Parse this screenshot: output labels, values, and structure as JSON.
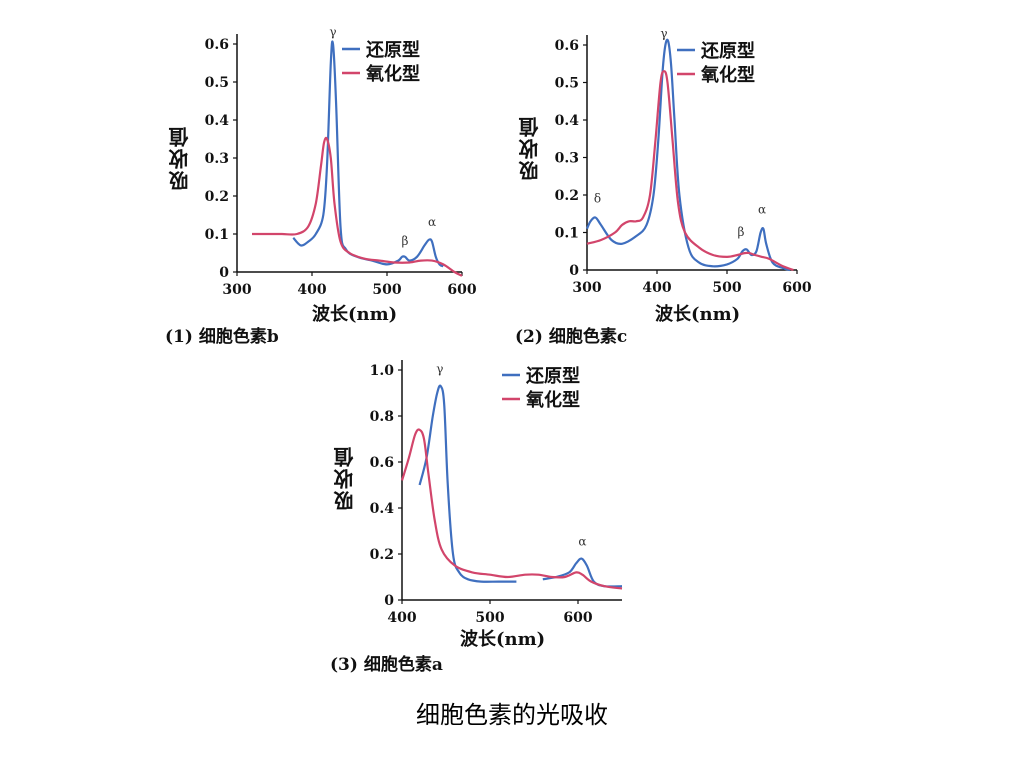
{
  "slide": {
    "title": "细胞色素的光吸收"
  },
  "colors": {
    "reduced": "#3f6fbf",
    "oxidized": "#d2456b",
    "axis": "#111111"
  },
  "chart_data": [
    {
      "type": "line",
      "caption": "(1) 细胞色素b",
      "xlabel": "波长(nm)",
      "ylabel": "吸收值",
      "xlim": [
        300,
        600
      ],
      "ylim": [
        0,
        0.6
      ],
      "xticks": [
        "300",
        "400",
        "500",
        "600"
      ],
      "yticks": [
        "0",
        "0.1",
        "0.2",
        "0.3",
        "0.4",
        "0.5",
        "0.6"
      ],
      "legend": [
        "还原型",
        "氧化型"
      ],
      "legend_position": "top-right",
      "annotations": [
        {
          "text": "γ",
          "x": 428,
          "y": 0.61
        },
        {
          "text": "β",
          "x": 524,
          "y": 0.06
        },
        {
          "text": "α",
          "x": 560,
          "y": 0.11
        }
      ],
      "series": [
        {
          "name": "还原型",
          "x": [
            375,
            385,
            395,
            405,
            415,
            420,
            425,
            428,
            432,
            438,
            445,
            460,
            480,
            500,
            515,
            520,
            524,
            530,
            540,
            550,
            556,
            560,
            565,
            570,
            575
          ],
          "y": [
            0.09,
            0.07,
            0.08,
            0.1,
            0.15,
            0.28,
            0.55,
            0.6,
            0.45,
            0.12,
            0.06,
            0.04,
            0.03,
            0.02,
            0.03,
            0.04,
            0.04,
            0.03,
            0.04,
            0.07,
            0.085,
            0.08,
            0.04,
            0.02,
            0.015
          ]
        },
        {
          "name": "氧化型",
          "x": [
            320,
            340,
            360,
            380,
            395,
            405,
            412,
            416,
            420,
            425,
            430,
            438,
            450,
            470,
            490,
            510,
            530,
            545,
            560,
            575,
            590,
            600
          ],
          "y": [
            0.1,
            0.1,
            0.1,
            0.1,
            0.12,
            0.18,
            0.28,
            0.34,
            0.35,
            0.3,
            0.18,
            0.08,
            0.05,
            0.035,
            0.03,
            0.025,
            0.025,
            0.03,
            0.03,
            0.02,
            0.0,
            -0.01
          ]
        }
      ]
    },
    {
      "type": "line",
      "caption": "(2) 细胞色素c",
      "xlabel": "波长(nm)",
      "ylabel": "吸收值",
      "xlim": [
        300,
        600
      ],
      "ylim": [
        0,
        0.6
      ],
      "xticks": [
        "300",
        "400",
        "500",
        "600"
      ],
      "yticks": [
        "0",
        "0.1",
        "0.2",
        "0.3",
        "0.4",
        "0.5",
        "0.6"
      ],
      "legend": [
        "还原型",
        "氧化型"
      ],
      "legend_position": "top-right",
      "annotations": [
        {
          "text": "γ",
          "x": 410,
          "y": 0.61
        },
        {
          "text": "δ",
          "x": 315,
          "y": 0.17
        },
        {
          "text": "β",
          "x": 520,
          "y": 0.08
        },
        {
          "text": "α",
          "x": 550,
          "y": 0.14
        }
      ],
      "series": [
        {
          "name": "还原型",
          "x": [
            300,
            305,
            312,
            320,
            335,
            350,
            370,
            385,
            395,
            402,
            408,
            412,
            416,
            420,
            425,
            432,
            445,
            460,
            480,
            500,
            515,
            522,
            528,
            535,
            542,
            548,
            552,
            556,
            565,
            580,
            590
          ],
          "y": [
            0.11,
            0.13,
            0.14,
            0.12,
            0.08,
            0.07,
            0.09,
            0.12,
            0.2,
            0.35,
            0.53,
            0.6,
            0.61,
            0.55,
            0.4,
            0.2,
            0.06,
            0.02,
            0.01,
            0.015,
            0.03,
            0.05,
            0.055,
            0.04,
            0.05,
            0.1,
            0.11,
            0.07,
            0.02,
            0.005,
            0.0
          ]
        },
        {
          "name": "氧化型",
          "x": [
            300,
            320,
            340,
            350,
            360,
            370,
            380,
            390,
            398,
            405,
            410,
            415,
            422,
            430,
            440,
            460,
            480,
            500,
            515,
            525,
            532,
            540,
            550,
            560,
            580,
            595
          ],
          "y": [
            0.07,
            0.08,
            0.1,
            0.12,
            0.13,
            0.13,
            0.14,
            0.2,
            0.35,
            0.5,
            0.53,
            0.5,
            0.35,
            0.18,
            0.1,
            0.06,
            0.04,
            0.035,
            0.04,
            0.045,
            0.045,
            0.04,
            0.035,
            0.03,
            0.01,
            0.0
          ]
        }
      ]
    },
    {
      "type": "line",
      "caption": "(3) 细胞色素a",
      "xlabel": "波长(nm)",
      "ylabel": "吸收值",
      "xlim": [
        400,
        650
      ],
      "ylim": [
        0,
        1.0
      ],
      "xticks": [
        "400",
        "500",
        "600"
      ],
      "yticks": [
        "0",
        "0.2",
        "0.4",
        "0.6",
        "0.8",
        "1.0"
      ],
      "legend": [
        "还原型",
        "氧化型"
      ],
      "legend_position": "top-right",
      "annotations": [
        {
          "text": "γ",
          "x": 443,
          "y": 0.97
        },
        {
          "text": "α",
          "x": 605,
          "y": 0.22
        }
      ],
      "series": [
        {
          "name": "还原型",
          "x": [
            420,
            428,
            435,
            440,
            444,
            448,
            452,
            458,
            465,
            475,
            490,
            510,
            530
          ],
          "y": [
            0.5,
            0.62,
            0.8,
            0.9,
            0.93,
            0.85,
            0.5,
            0.2,
            0.12,
            0.09,
            0.08,
            0.08,
            0.08
          ]
        },
        {
          "name": "还原型",
          "x": [
            560,
            575,
            590,
            598,
            604,
            610,
            618,
            630,
            650
          ],
          "y": [
            0.09,
            0.1,
            0.12,
            0.16,
            0.18,
            0.15,
            0.08,
            0.06,
            0.06
          ]
        },
        {
          "name": "氧化型",
          "x": [
            400,
            408,
            415,
            420,
            425,
            430,
            437,
            445,
            460,
            480,
            500,
            520,
            540,
            555,
            570,
            585,
            598,
            605,
            615,
            630,
            650
          ],
          "y": [
            0.52,
            0.62,
            0.72,
            0.74,
            0.7,
            0.55,
            0.35,
            0.22,
            0.15,
            0.12,
            0.11,
            0.1,
            0.11,
            0.11,
            0.1,
            0.1,
            0.12,
            0.11,
            0.08,
            0.06,
            0.05
          ]
        }
      ]
    }
  ]
}
